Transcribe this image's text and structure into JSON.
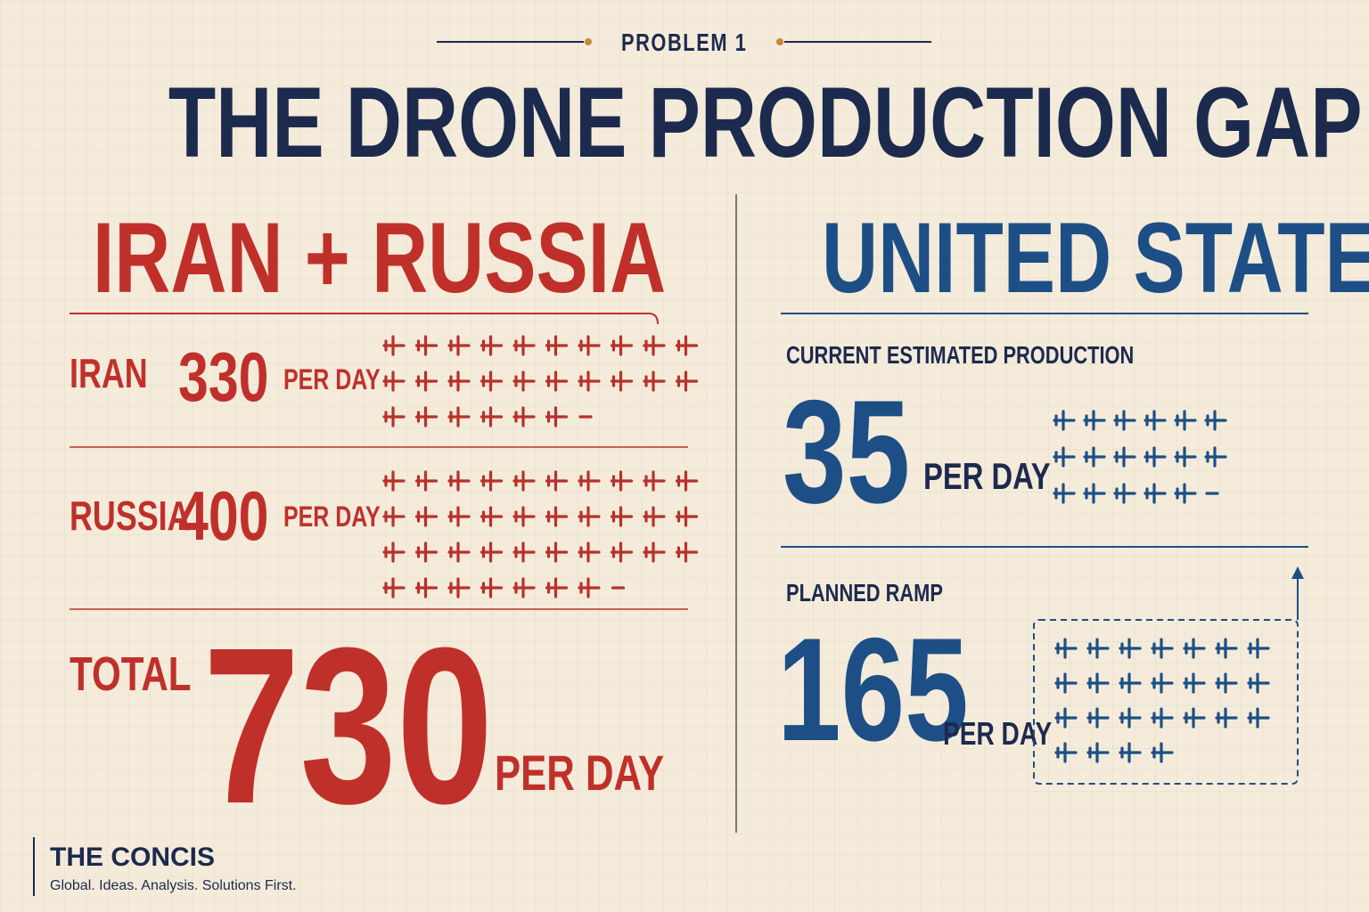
{
  "header": {
    "kicker": "PROBLEM 1",
    "title": "THE DRONE PRODUCTION GAP"
  },
  "left": {
    "heading": "IRAN + RUSSIA",
    "rows": [
      {
        "label": "IRAN",
        "value": 330,
        "unit": "PER DAY"
      },
      {
        "label": "RUSSIA",
        "value": 400,
        "unit": "PER DAY"
      }
    ],
    "total": {
      "label": "TOTAL",
      "value": 730,
      "unit": "PER DAY"
    }
  },
  "right": {
    "heading": "UNITED STATES",
    "current": {
      "label": "CURRENT ESTIMATED PRODUCTION",
      "value": 35,
      "unit": "PER DAY"
    },
    "planned": {
      "label": "PLANNED RAMP",
      "value": 165,
      "unit": "PER DAY"
    }
  },
  "footer": {
    "brand": "THE CONCIS",
    "tagline": "Global. Ideas. Analysis. Solutions First."
  }
}
